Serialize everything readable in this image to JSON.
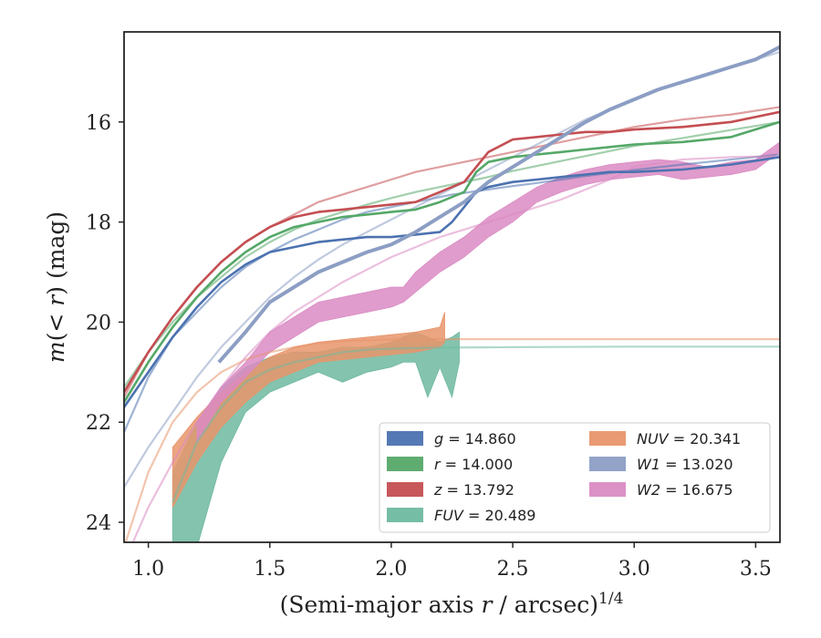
{
  "chart_data": {
    "type": "line",
    "xlabel": "(Semi-major axis r / arcsec)^{1/4}",
    "ylabel": "m(< r) (mag)",
    "xlim": [
      0.9,
      3.6
    ],
    "ylim": [
      24.4,
      14.2
    ],
    "y_inverted": true,
    "grid": false,
    "xticks": [
      "1.0",
      "1.5",
      "2.0",
      "2.5",
      "3.0",
      "3.5"
    ],
    "yticks": [
      "16",
      "18",
      "20",
      "22",
      "24"
    ],
    "legend": {
      "placement": "lower-right",
      "columns": 2,
      "entries": [
        {
          "label": "g = 14.860",
          "color": "#4c72b0"
        },
        {
          "label": "r = 14.000",
          "color": "#55a868"
        },
        {
          "label": "z = 13.792",
          "color": "#c44e52"
        },
        {
          "label": "FUV = 20.489",
          "color": "#6fb9a0"
        },
        {
          "label": "NUV = 20.341",
          "color": "#e8956b"
        },
        {
          "label": "W1 = 13.020",
          "color": "#8c9ec4"
        },
        {
          "label": "W2 = 16.675",
          "color": "#da8bc3"
        }
      ]
    },
    "series": [
      {
        "name": "g = 14.860",
        "color": "#4c72b0",
        "x": [
          0.9,
          1.0,
          1.1,
          1.2,
          1.3,
          1.4,
          1.5,
          1.6,
          1.7,
          1.8,
          1.9,
          2.0,
          2.1,
          2.2,
          2.25,
          2.3,
          2.35,
          2.4,
          2.5,
          2.6,
          2.7,
          2.8,
          2.9,
          3.0,
          3.2,
          3.4,
          3.6
        ],
        "y": [
          21.7,
          21.0,
          20.3,
          19.7,
          19.2,
          18.85,
          18.6,
          18.5,
          18.4,
          18.35,
          18.3,
          18.3,
          18.25,
          18.2,
          18.0,
          17.7,
          17.4,
          17.3,
          17.2,
          17.15,
          17.1,
          17.05,
          17.0,
          17.0,
          16.95,
          16.85,
          16.7
        ],
        "model_y": [
          22.2,
          21.1,
          20.3,
          19.8,
          19.3,
          18.9,
          18.6,
          18.35,
          18.15,
          17.95,
          17.8,
          17.7,
          17.6,
          17.5,
          17.45,
          17.42,
          17.38,
          17.35,
          17.28,
          17.22,
          17.15,
          17.08,
          17.02,
          16.96,
          16.85,
          16.75,
          16.65
        ]
      },
      {
        "name": "r = 14.000",
        "color": "#55a868",
        "x": [
          0.9,
          1.0,
          1.1,
          1.2,
          1.3,
          1.4,
          1.5,
          1.6,
          1.7,
          1.8,
          1.9,
          2.0,
          2.1,
          2.2,
          2.3,
          2.35,
          2.4,
          2.5,
          2.6,
          2.7,
          2.8,
          2.9,
          3.0,
          3.2,
          3.4,
          3.6
        ],
        "y": [
          21.6,
          20.8,
          20.1,
          19.5,
          19.0,
          18.6,
          18.3,
          18.1,
          18.0,
          17.9,
          17.85,
          17.8,
          17.75,
          17.6,
          17.4,
          17.0,
          16.8,
          16.7,
          16.65,
          16.6,
          16.55,
          16.5,
          16.45,
          16.4,
          16.3,
          16.0
        ],
        "model_y": [
          21.3,
          20.6,
          20.0,
          19.5,
          19.1,
          18.7,
          18.4,
          18.15,
          17.95,
          17.8,
          17.65,
          17.52,
          17.4,
          17.3,
          17.2,
          17.15,
          17.1,
          16.98,
          16.88,
          16.78,
          16.68,
          16.58,
          16.48,
          16.32,
          16.16,
          16.0
        ]
      },
      {
        "name": "z = 13.792",
        "color": "#c44e52",
        "x": [
          0.9,
          1.0,
          1.1,
          1.2,
          1.3,
          1.4,
          1.5,
          1.6,
          1.7,
          1.8,
          1.9,
          2.0,
          2.1,
          2.2,
          2.3,
          2.35,
          2.4,
          2.5,
          2.6,
          2.7,
          2.8,
          2.9,
          3.0,
          3.2,
          3.4,
          3.6
        ],
        "y": [
          21.4,
          20.6,
          19.9,
          19.3,
          18.8,
          18.4,
          18.1,
          17.9,
          17.8,
          17.75,
          17.7,
          17.65,
          17.6,
          17.4,
          17.2,
          16.9,
          16.6,
          16.35,
          16.3,
          16.25,
          16.2,
          16.2,
          16.15,
          16.1,
          16.0,
          15.8
        ],
        "model_y": [
          21.5,
          20.6,
          19.9,
          19.3,
          18.8,
          18.4,
          18.1,
          17.85,
          17.6,
          17.45,
          17.3,
          17.15,
          17.0,
          16.9,
          16.8,
          16.75,
          16.7,
          16.6,
          16.5,
          16.4,
          16.3,
          16.2,
          16.1,
          15.95,
          15.85,
          15.7
        ]
      },
      {
        "name": "FUV = 20.489",
        "color": "#6fb9a0",
        "x": [
          1.1,
          1.2,
          1.3,
          1.4,
          1.5,
          1.6,
          1.7,
          1.8,
          1.9,
          2.0,
          2.05,
          2.1,
          2.15,
          2.2,
          2.25,
          2.28
        ],
        "y_low": [
          23.0,
          22.0,
          21.3,
          20.9,
          20.7,
          20.6,
          20.6,
          20.5,
          20.5,
          20.4,
          20.3,
          20.2,
          20.3,
          20.4,
          20.3,
          20.2
        ],
        "y_high": [
          25.0,
          24.5,
          22.8,
          21.8,
          21.4,
          21.2,
          21.0,
          21.2,
          21.0,
          20.9,
          20.8,
          20.8,
          21.5,
          20.9,
          21.5,
          20.8
        ],
        "model_x": [
          1.1,
          1.2,
          1.3,
          1.4,
          1.5,
          1.6,
          1.7,
          1.8,
          1.9,
          2.0,
          2.2,
          2.5,
          3.0,
          3.5,
          3.6
        ],
        "model_y": [
          23.6,
          22.4,
          21.7,
          21.2,
          20.95,
          20.8,
          20.7,
          20.6,
          20.55,
          20.53,
          20.51,
          20.5,
          20.49,
          20.49,
          20.49
        ]
      },
      {
        "name": "NUV = 20.341",
        "color": "#e8956b",
        "x": [
          1.1,
          1.2,
          1.3,
          1.4,
          1.5,
          1.6,
          1.7,
          1.8,
          1.9,
          2.0,
          2.1,
          2.2,
          2.22
        ],
        "y_low": [
          22.5,
          21.9,
          21.4,
          21.0,
          20.7,
          20.5,
          20.4,
          20.35,
          20.3,
          20.25,
          20.2,
          20.1,
          19.8
        ],
        "y_high": [
          23.7,
          22.8,
          22.1,
          21.6,
          21.2,
          21.0,
          20.8,
          20.75,
          20.7,
          20.65,
          20.6,
          20.5,
          20.4
        ],
        "model_x": [
          0.9,
          1.0,
          1.1,
          1.2,
          1.3,
          1.4,
          1.5,
          1.6,
          1.7,
          1.8,
          1.9,
          2.0,
          2.2,
          2.5,
          3.0,
          3.5,
          3.6
        ],
        "model_y": [
          24.5,
          23.0,
          22.0,
          21.4,
          21.0,
          20.75,
          20.6,
          20.5,
          20.42,
          20.38,
          20.36,
          20.35,
          20.34,
          20.34,
          20.34,
          20.34,
          20.34
        ]
      },
      {
        "name": "W1 = 13.020",
        "color": "#8c9ec4",
        "x": [
          1.29,
          1.4,
          1.5,
          1.6,
          1.7,
          1.8,
          1.9,
          2.0,
          2.1,
          2.2,
          2.3,
          2.4,
          2.5,
          2.6,
          2.7,
          2.8,
          2.9,
          3.0,
          3.1,
          3.2,
          3.3,
          3.4,
          3.5,
          3.6
        ],
        "y": [
          20.8,
          20.2,
          19.6,
          19.3,
          19.0,
          18.8,
          18.6,
          18.45,
          18.2,
          17.9,
          17.6,
          17.2,
          16.9,
          16.6,
          16.3,
          16.0,
          15.75,
          15.55,
          15.35,
          15.2,
          15.05,
          14.9,
          14.75,
          14.5
        ],
        "model_x": [
          0.9,
          1.0,
          1.1,
          1.2,
          1.3,
          1.4,
          1.5,
          1.6,
          1.7,
          1.8,
          1.9,
          2.0,
          2.1,
          2.2,
          2.3,
          2.4,
          2.5,
          2.6,
          2.7,
          2.8,
          2.9,
          3.0,
          3.1,
          3.2,
          3.3,
          3.4,
          3.5,
          3.6
        ],
        "model_y": [
          23.3,
          22.5,
          21.8,
          21.1,
          20.5,
          20.0,
          19.5,
          19.1,
          18.75,
          18.45,
          18.2,
          17.95,
          17.7,
          17.45,
          17.2,
          16.95,
          16.7,
          16.45,
          16.2,
          15.95,
          15.75,
          15.55,
          15.35,
          15.2,
          15.05,
          14.9,
          14.75,
          14.6
        ]
      },
      {
        "name": "W2 = 16.675",
        "color": "#da8bc3",
        "x": [
          1.2,
          1.3,
          1.4,
          1.5,
          1.6,
          1.7,
          1.8,
          1.9,
          2.0,
          2.05,
          2.1,
          2.2,
          2.3,
          2.4,
          2.5,
          2.6,
          2.7,
          2.8,
          2.9,
          3.0,
          3.1,
          3.2,
          3.3,
          3.4,
          3.5,
          3.6
        ],
        "y_low": [
          22.0,
          21.3,
          20.8,
          20.2,
          19.9,
          19.6,
          19.5,
          19.4,
          19.3,
          19.3,
          19.0,
          18.6,
          18.3,
          17.9,
          17.6,
          17.3,
          17.1,
          16.95,
          16.85,
          16.8,
          16.75,
          16.8,
          16.9,
          16.8,
          16.75,
          16.4
        ],
        "y_high": [
          22.4,
          21.6,
          21.1,
          20.6,
          20.3,
          20.0,
          19.9,
          19.8,
          19.7,
          19.6,
          19.4,
          19.0,
          18.7,
          18.3,
          18.0,
          17.6,
          17.4,
          17.25,
          17.15,
          17.1,
          17.05,
          17.15,
          17.1,
          17.05,
          16.95,
          16.6
        ],
        "model_x": [
          0.9,
          1.0,
          1.1,
          1.2,
          1.3,
          1.4,
          1.5,
          1.6,
          1.7,
          1.8,
          1.9,
          2.0,
          2.1,
          2.2,
          2.3,
          2.4,
          2.5,
          2.6,
          2.7,
          2.8,
          2.9,
          3.0,
          3.2,
          3.4,
          3.6
        ],
        "model_y": [
          24.8,
          23.7,
          22.8,
          22.0,
          21.3,
          20.7,
          20.2,
          19.8,
          19.5,
          19.2,
          18.95,
          18.7,
          18.5,
          18.3,
          18.15,
          18.0,
          17.85,
          17.7,
          17.55,
          17.35,
          17.15,
          16.9,
          16.75,
          16.7,
          16.68
        ]
      }
    ]
  }
}
